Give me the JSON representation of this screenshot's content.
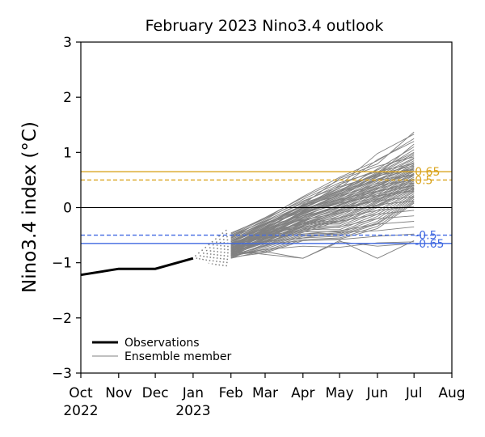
{
  "chart_data": {
    "type": "line",
    "title": "February 2023 Nino3.4 outlook",
    "ylabel": "Nino3.4 index (°C)",
    "xlabel": "",
    "ylim": [
      -3,
      3
    ],
    "xlim": [
      "2022-10-01",
      "2023-08-01"
    ],
    "yticks": [
      -3,
      -2,
      -1,
      0,
      1,
      2,
      3
    ],
    "ytick_labels": [
      "−3",
      "−2",
      "−1",
      "0",
      "1",
      "2",
      "3"
    ],
    "xticks": [
      {
        "date": "2022-10-01",
        "label": "Oct",
        "year": "2022"
      },
      {
        "date": "2022-11-01",
        "label": "Nov",
        "year": ""
      },
      {
        "date": "2022-12-01",
        "label": "Dec",
        "year": ""
      },
      {
        "date": "2023-01-01",
        "label": "Jan",
        "year": "2023"
      },
      {
        "date": "2023-02-01",
        "label": "Feb",
        "year": ""
      },
      {
        "date": "2023-03-01",
        "label": "Mar",
        "year": ""
      },
      {
        "date": "2023-04-01",
        "label": "Apr",
        "year": ""
      },
      {
        "date": "2023-05-01",
        "label": "May",
        "year": ""
      },
      {
        "date": "2023-06-01",
        "label": "Jun",
        "year": ""
      },
      {
        "date": "2023-07-01",
        "label": "Jul",
        "year": ""
      },
      {
        "date": "2023-08-01",
        "label": "Aug",
        "year": ""
      }
    ],
    "observations": {
      "name": "Observations",
      "color": "#000000",
      "dates": [
        "2022-10-01",
        "2022-11-01",
        "2022-12-01",
        "2023-01-01"
      ],
      "values": [
        -1.22,
        -1.11,
        -1.11,
        -0.92
      ]
    },
    "ensemble": {
      "name": "Ensemble member",
      "color": "#808080",
      "dates": [
        "2023-02-01",
        "2023-03-01",
        "2023-04-01",
        "2023-05-01",
        "2023-06-01",
        "2023-07-01"
      ],
      "start_range": [
        -1.12,
        -0.35
      ],
      "members": [
        [
          -0.62,
          -0.36,
          0.06,
          0.53,
          0.79,
          1.37
        ],
        [
          -0.67,
          -0.39,
          0.01,
          0.4,
          0.98,
          1.33
        ],
        [
          -0.58,
          -0.29,
          0.02,
          0.35,
          0.87,
          1.2
        ],
        [
          -0.65,
          -0.41,
          0.0,
          0.3,
          0.7,
          1.1
        ],
        [
          -0.6,
          -0.32,
          0.03,
          0.3,
          0.64,
          1.05
        ],
        [
          -0.7,
          -0.38,
          -0.01,
          0.28,
          0.62,
          0.98
        ],
        [
          -0.66,
          -0.45,
          -0.06,
          0.25,
          0.6,
          0.95
        ],
        [
          -0.68,
          -0.36,
          -0.04,
          0.22,
          0.58,
          0.9
        ],
        [
          -0.73,
          -0.42,
          -0.08,
          0.2,
          0.55,
          0.88
        ],
        [
          -0.71,
          -0.4,
          -0.1,
          0.18,
          0.5,
          0.85
        ],
        [
          -0.69,
          -0.47,
          -0.09,
          0.15,
          0.48,
          0.82
        ],
        [
          -0.75,
          -0.44,
          -0.12,
          0.12,
          0.45,
          0.78
        ],
        [
          -0.72,
          -0.5,
          -0.15,
          0.1,
          0.42,
          0.75
        ],
        [
          -0.78,
          -0.48,
          -0.14,
          0.08,
          0.4,
          0.72
        ],
        [
          -0.74,
          -0.52,
          -0.18,
          0.05,
          0.38,
          0.7
        ],
        [
          -0.8,
          -0.5,
          -0.2,
          0.04,
          0.35,
          0.68
        ],
        [
          -0.77,
          -0.55,
          -0.22,
          0.02,
          0.33,
          0.65
        ],
        [
          -0.82,
          -0.53,
          -0.25,
          0.0,
          0.3,
          0.62
        ],
        [
          -0.79,
          -0.58,
          -0.24,
          -0.03,
          0.28,
          0.6
        ],
        [
          -0.84,
          -0.56,
          -0.28,
          -0.05,
          0.25,
          0.58
        ],
        [
          -0.81,
          -0.6,
          -0.3,
          -0.08,
          0.22,
          0.55
        ],
        [
          -0.86,
          -0.58,
          -0.32,
          -0.1,
          0.2,
          0.52
        ],
        [
          -0.83,
          -0.62,
          -0.34,
          -0.12,
          0.18,
          0.5
        ],
        [
          -0.88,
          -0.6,
          -0.36,
          -0.15,
          0.15,
          0.48
        ],
        [
          -0.85,
          -0.64,
          -0.38,
          -0.18,
          0.12,
          0.45
        ],
        [
          -0.9,
          -0.66,
          -0.4,
          -0.2,
          0.1,
          0.42
        ],
        [
          -0.87,
          -0.68,
          -0.42,
          -0.22,
          0.08,
          0.4
        ],
        [
          -0.76,
          -0.5,
          -0.26,
          -0.25,
          0.05,
          0.38
        ],
        [
          -0.7,
          -0.46,
          -0.28,
          -0.28,
          0.02,
          0.35
        ],
        [
          -0.74,
          -0.52,
          -0.3,
          -0.3,
          0.0,
          0.32
        ],
        [
          -0.8,
          -0.56,
          -0.35,
          -0.33,
          -0.05,
          0.3
        ],
        [
          -0.84,
          -0.6,
          -0.38,
          -0.36,
          -0.08,
          0.28
        ],
        [
          -0.78,
          -0.64,
          -0.4,
          -0.4,
          -0.12,
          0.25
        ],
        [
          -0.82,
          -0.62,
          -0.44,
          -0.44,
          -0.16,
          0.22
        ],
        [
          -0.86,
          -0.7,
          -0.48,
          -0.46,
          -0.2,
          0.2
        ],
        [
          -0.9,
          -0.72,
          -0.5,
          -0.48,
          -0.25,
          0.18
        ],
        [
          -0.88,
          -0.75,
          -0.52,
          -0.5,
          -0.28,
          0.15
        ],
        [
          -0.92,
          -0.78,
          -0.55,
          -0.52,
          -0.3,
          0.12
        ],
        [
          -0.86,
          -0.8,
          -0.58,
          -0.55,
          -0.34,
          0.1
        ],
        [
          -0.9,
          -0.82,
          -0.6,
          -0.57,
          -0.38,
          0.08
        ],
        [
          -0.78,
          -0.85,
          -0.92,
          -0.6,
          -0.92,
          -0.6
        ],
        [
          -0.84,
          -0.8,
          -0.92,
          -0.62,
          -0.7,
          -0.65
        ],
        [
          -0.88,
          -0.76,
          -0.7,
          -0.72,
          -0.64,
          -0.62
        ],
        [
          -0.72,
          -0.66,
          -0.6,
          -0.58,
          -0.52,
          -0.48
        ],
        [
          -0.75,
          -0.62,
          -0.55,
          -0.45,
          -0.42,
          -0.35
        ],
        [
          -0.68,
          -0.55,
          -0.48,
          -0.42,
          -0.3,
          -0.25
        ],
        [
          -0.7,
          -0.5,
          -0.42,
          -0.35,
          -0.2,
          -0.15
        ],
        [
          -0.64,
          -0.46,
          -0.36,
          -0.25,
          -0.12,
          -0.05
        ],
        [
          -0.66,
          -0.42,
          -0.3,
          -0.18,
          -0.05,
          0.02
        ],
        [
          -0.6,
          -0.38,
          -0.22,
          -0.1,
          0.05,
          0.12
        ],
        [
          -0.62,
          -0.34,
          -0.15,
          0.0,
          0.12,
          0.2
        ],
        [
          -0.58,
          -0.3,
          -0.08,
          0.08,
          0.22,
          0.3
        ],
        [
          -0.55,
          -0.28,
          -0.02,
          0.15,
          0.3,
          0.4
        ],
        [
          -0.56,
          -0.26,
          0.04,
          0.22,
          0.4,
          0.5
        ],
        [
          -0.52,
          -0.24,
          0.08,
          0.3,
          0.5,
          0.6
        ],
        [
          -0.5,
          -0.2,
          0.12,
          0.38,
          0.58,
          0.7
        ],
        [
          -0.54,
          -0.22,
          0.15,
          0.45,
          0.65,
          0.8
        ],
        [
          -0.48,
          -0.18,
          0.18,
          0.5,
          0.75,
          0.92
        ],
        [
          -0.5,
          -0.25,
          0.1,
          0.42,
          0.68,
          1.0
        ],
        [
          -0.52,
          -0.3,
          0.05,
          0.36,
          0.6,
          1.15
        ],
        [
          -0.46,
          -0.2,
          0.2,
          0.55,
          0.85,
          1.25
        ],
        [
          -0.7,
          -0.44,
          -0.15,
          0.1,
          0.3,
          0.45
        ],
        [
          -0.66,
          -0.4,
          -0.12,
          0.14,
          0.34,
          0.52
        ],
        [
          -0.72,
          -0.48,
          -0.2,
          0.05,
          0.25,
          0.4
        ],
        [
          -0.76,
          -0.52,
          -0.26,
          0.0,
          0.2,
          0.36
        ],
        [
          -0.8,
          -0.54,
          -0.3,
          -0.04,
          0.16,
          0.33
        ],
        [
          -0.64,
          -0.36,
          -0.05,
          0.2,
          0.44,
          0.6
        ],
        [
          -0.6,
          -0.34,
          0.0,
          0.26,
          0.52,
          0.7
        ],
        [
          -0.58,
          -0.31,
          0.04,
          0.32,
          0.6,
          0.76
        ],
        [
          -0.62,
          -0.37,
          -0.02,
          0.28,
          0.56,
          0.8
        ],
        [
          -0.68,
          -0.43,
          -0.07,
          0.24,
          0.5,
          0.74
        ],
        [
          -0.74,
          -0.46,
          -0.11,
          0.16,
          0.4,
          0.66
        ],
        [
          -0.79,
          -0.49,
          -0.17,
          0.12,
          0.36,
          0.58
        ],
        [
          -0.83,
          -0.57,
          -0.23,
          0.06,
          0.28,
          0.5
        ],
        [
          -0.87,
          -0.61,
          -0.33,
          -0.06,
          0.14,
          0.44
        ],
        [
          -0.91,
          -0.69,
          -0.45,
          -0.24,
          0.04,
          0.34
        ]
      ]
    },
    "reference_lines": [
      {
        "value": 0.65,
        "label": "0.65",
        "style": "solid",
        "color": "#DAA520"
      },
      {
        "value": 0.5,
        "label": "0.5",
        "style": "dashed",
        "color": "#DAA520"
      },
      {
        "value": 0,
        "label": "",
        "style": "solid",
        "color": "#000000"
      },
      {
        "value": -0.5,
        "label": "-0.5",
        "style": "dashed",
        "color": "#4169E1"
      },
      {
        "value": -0.65,
        "label": "-0.65",
        "style": "solid",
        "color": "#4169E1"
      }
    ],
    "legend": {
      "position": "lower-left",
      "entries": [
        {
          "label": "Observations",
          "color": "#000000"
        },
        {
          "label": "Ensemble member",
          "color": "#808080"
        }
      ]
    },
    "grid": false
  }
}
